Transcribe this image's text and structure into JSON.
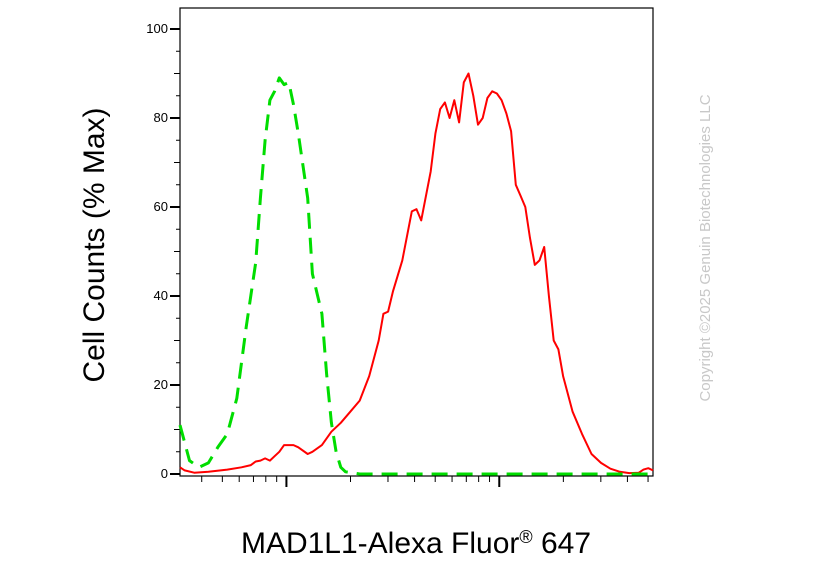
{
  "chart_data": {
    "type": "line",
    "xlabel": "MAD1L1-Alexa Fluor",
    "xlabel_superscript": "®",
    "xlabel_suffix": " 647",
    "ylabel": "Cell Counts (% Max)",
    "x_scale": "log",
    "ylim": [
      0,
      100
    ],
    "y_ticks": [
      "0",
      "20",
      "40",
      "60",
      "80",
      "100"
    ],
    "grid": false,
    "legend": "none",
    "watermark": "Copyright ©2025 Genuin Biotechnologies LLC",
    "series": [
      {
        "color": "#ff0000",
        "style": "solid",
        "points": [
          [
            0.0,
            1.5
          ],
          [
            0.01,
            0.8
          ],
          [
            0.03,
            0.3
          ],
          [
            0.06,
            0.5
          ],
          [
            0.1,
            1.0
          ],
          [
            0.13,
            1.5
          ],
          [
            0.15,
            2.0
          ],
          [
            0.16,
            2.8
          ],
          [
            0.17,
            3.0
          ],
          [
            0.18,
            3.5
          ],
          [
            0.19,
            3.0
          ],
          [
            0.2,
            4.0
          ],
          [
            0.21,
            5.0
          ],
          [
            0.22,
            6.5
          ],
          [
            0.24,
            6.5
          ],
          [
            0.25,
            6.0
          ],
          [
            0.27,
            4.5
          ],
          [
            0.28,
            5.0
          ],
          [
            0.3,
            6.5
          ],
          [
            0.32,
            9.5
          ],
          [
            0.34,
            11.5
          ],
          [
            0.36,
            14.0
          ],
          [
            0.38,
            16.5
          ],
          [
            0.4,
            22.0
          ],
          [
            0.42,
            30.0
          ],
          [
            0.43,
            36.0
          ],
          [
            0.44,
            36.5
          ],
          [
            0.45,
            41.0
          ],
          [
            0.47,
            48.0
          ],
          [
            0.49,
            59.0
          ],
          [
            0.5,
            59.5
          ],
          [
            0.51,
            57.0
          ],
          [
            0.53,
            68.0
          ],
          [
            0.54,
            76.5
          ],
          [
            0.55,
            82.0
          ],
          [
            0.56,
            83.5
          ],
          [
            0.57,
            80.0
          ],
          [
            0.58,
            84.0
          ],
          [
            0.59,
            79.0
          ],
          [
            0.6,
            88.0
          ],
          [
            0.61,
            90.0
          ],
          [
            0.62,
            85.0
          ],
          [
            0.63,
            78.5
          ],
          [
            0.64,
            80.0
          ],
          [
            0.65,
            84.5
          ],
          [
            0.66,
            86.0
          ],
          [
            0.67,
            85.5
          ],
          [
            0.68,
            84.0
          ],
          [
            0.69,
            81.0
          ],
          [
            0.7,
            77.0
          ],
          [
            0.71,
            65.0
          ],
          [
            0.72,
            62.5
          ],
          [
            0.73,
            60.0
          ],
          [
            0.74,
            53.0
          ],
          [
            0.75,
            47.0
          ],
          [
            0.76,
            48.0
          ],
          [
            0.77,
            51.0
          ],
          [
            0.78,
            40.0
          ],
          [
            0.79,
            30.0
          ],
          [
            0.8,
            28.0
          ],
          [
            0.81,
            22.0
          ],
          [
            0.83,
            14.0
          ],
          [
            0.85,
            9.0
          ],
          [
            0.87,
            4.5
          ],
          [
            0.89,
            2.5
          ],
          [
            0.91,
            1.2
          ],
          [
            0.93,
            0.5
          ],
          [
            0.95,
            0.2
          ],
          [
            0.97,
            0.3
          ],
          [
            0.98,
            1.0
          ],
          [
            0.99,
            1.3
          ],
          [
            1.0,
            0.8
          ]
        ]
      },
      {
        "color": "#00dd00",
        "style": "dashed",
        "points": [
          [
            0.0,
            11.0
          ],
          [
            0.02,
            3.0
          ],
          [
            0.04,
            1.5
          ],
          [
            0.06,
            2.5
          ],
          [
            0.08,
            6.0
          ],
          [
            0.1,
            9.0
          ],
          [
            0.12,
            17.0
          ],
          [
            0.14,
            33.0
          ],
          [
            0.16,
            47.5
          ],
          [
            0.17,
            62.0
          ],
          [
            0.18,
            75.0
          ],
          [
            0.19,
            84.0
          ],
          [
            0.2,
            86.0
          ],
          [
            0.21,
            89.0
          ],
          [
            0.22,
            87.5
          ],
          [
            0.23,
            88.0
          ],
          [
            0.24,
            83.0
          ],
          [
            0.25,
            76.5
          ],
          [
            0.27,
            62.0
          ],
          [
            0.28,
            45.0
          ],
          [
            0.3,
            36.0
          ],
          [
            0.31,
            22.5
          ],
          [
            0.32,
            11.5
          ],
          [
            0.33,
            5.0
          ],
          [
            0.34,
            1.5
          ],
          [
            0.35,
            0.5
          ],
          [
            0.38,
            0.0
          ],
          [
            1.0,
            0.0
          ]
        ]
      }
    ]
  }
}
